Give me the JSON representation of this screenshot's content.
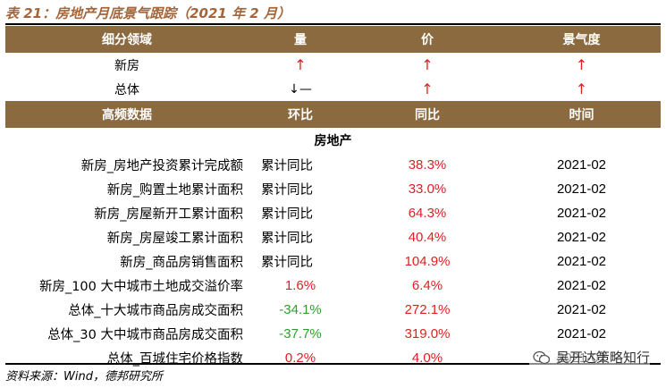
{
  "title": "表 21：房地产月底景气跟踪（2021 年 2 月）",
  "summary": {
    "headers": [
      "细分领域",
      "量",
      "价",
      "景气度"
    ],
    "rows": [
      {
        "name": "新房",
        "volume": "↑",
        "price": "↑",
        "sentiment": "↑"
      },
      {
        "name": "总体",
        "volume": "↓—",
        "price": "↑",
        "sentiment": "↑"
      }
    ]
  },
  "detail": {
    "headers": [
      "高频数据",
      "环比",
      "同比",
      "时间"
    ],
    "section": "房地产",
    "rows": [
      {
        "name": "新房_房地产投资累计完成额",
        "mom": "累计同比",
        "yoy": "38.3%",
        "time": "2021-02"
      },
      {
        "name": "新房_购置土地累计面积",
        "mom": "累计同比",
        "yoy": "33.0%",
        "time": "2021-02"
      },
      {
        "name": "新房_房屋新开工累计面积",
        "mom": "累计同比",
        "yoy": "64.3%",
        "time": "2021-02"
      },
      {
        "name": "新房_房屋竣工累计面积",
        "mom": "累计同比",
        "yoy": "40.4%",
        "time": "2021-02"
      },
      {
        "name": "新房_商品房销售面积",
        "mom": "累计同比",
        "yoy": "104.9%",
        "time": "2021-02"
      },
      {
        "name": "新房_100 大中城市土地成交溢价率",
        "mom": "1.6%",
        "yoy": "6.4%",
        "time": "2021-02"
      },
      {
        "name": "总体_十大城市商品房成交面积",
        "mom": "-34.1%",
        "yoy": "272.1%",
        "time": "2021-02"
      },
      {
        "name": "总体_30 大中城市商品房成交面积",
        "mom": "-37.7%",
        "yoy": "319.0%",
        "time": "2021-02"
      },
      {
        "name": "总体_百城住宅价格指数",
        "mom": "0.2%",
        "yoy": "4.0%",
        "time": "2021-02"
      }
    ]
  },
  "source": "资料来源：Wind，德邦研究所",
  "watermark": "吴开达策略知行",
  "colors": {
    "header_bg": "#8b6a40",
    "up_red": "#e02020",
    "down_green": "#2ca02c",
    "title": "#a5653a"
  },
  "icons": {
    "up": "up-arrow-icon",
    "wechat": "wechat-icon"
  }
}
